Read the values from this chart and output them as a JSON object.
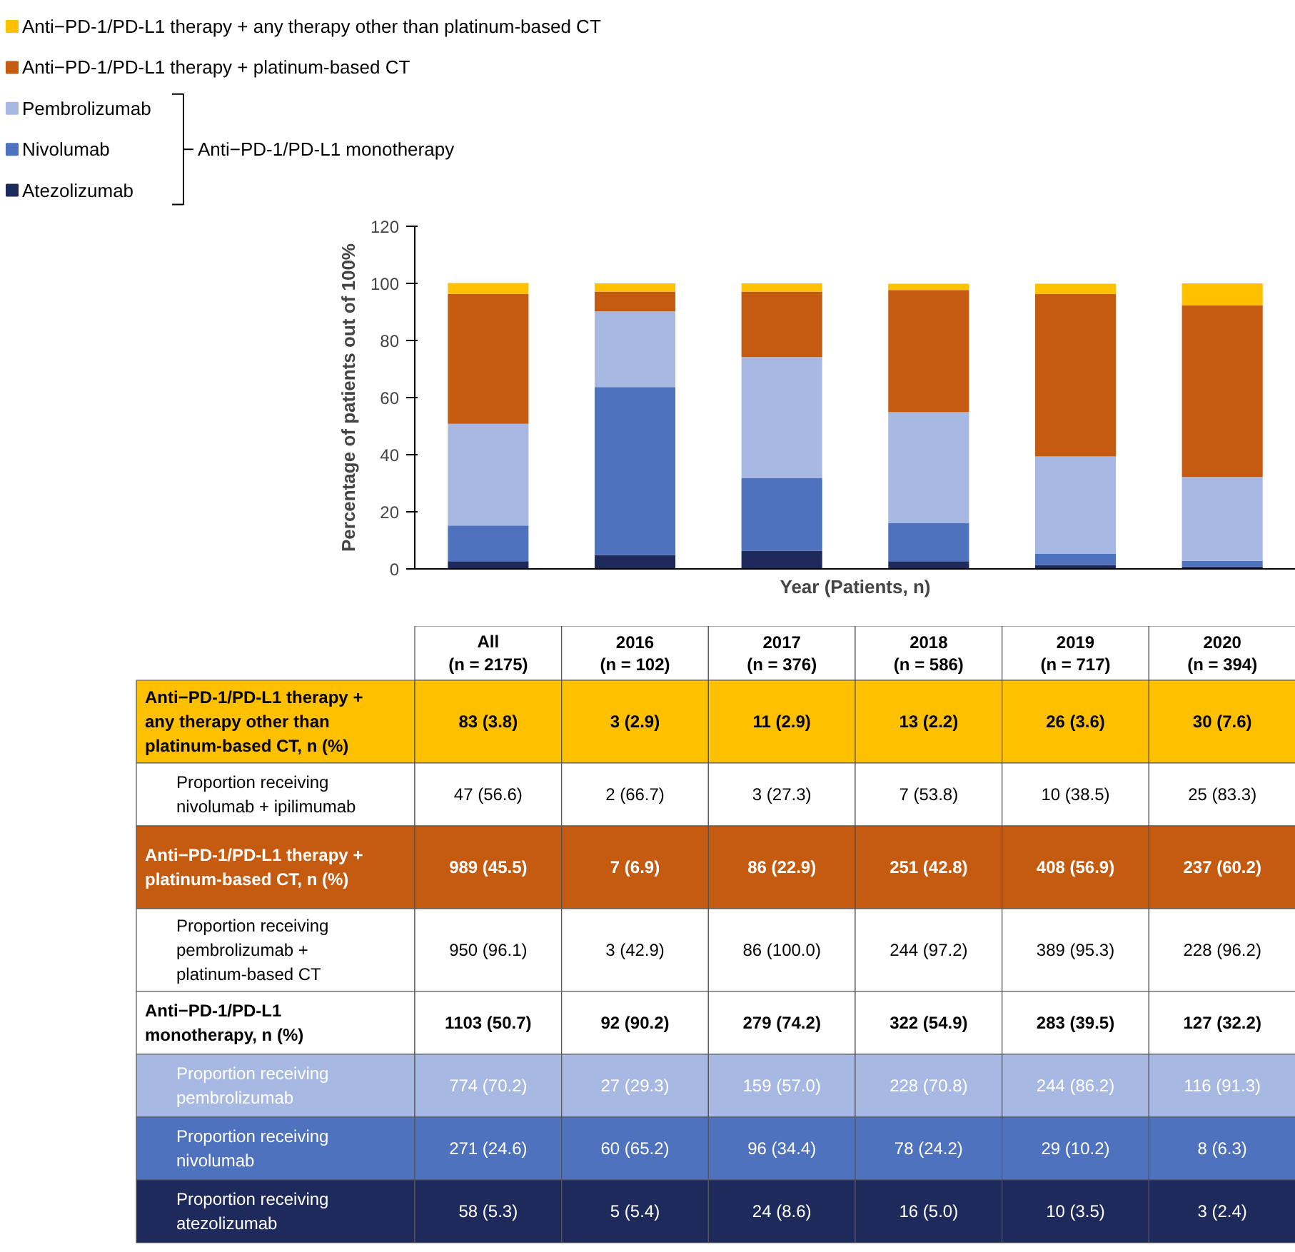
{
  "chart_data": {
    "type": "bar",
    "stacked": true,
    "xlabel": "Year (Patients, n)",
    "ylabel": "Percentage of patients out of 100%",
    "categories": [
      "All",
      "2016",
      "2017",
      "2018",
      "2019",
      "2020"
    ],
    "ylim": [
      0,
      120
    ],
    "yticks": [
      0,
      20,
      40,
      60,
      80,
      100,
      120
    ],
    "grid": false,
    "legend": "top left",
    "series": [
      {
        "name": "Atezolizumab",
        "color": "#1f2a5c",
        "values": [
          2.7,
          4.9,
          6.4,
          2.7,
          1.4,
          0.8
        ]
      },
      {
        "name": "Nivolumab",
        "color": "#4f72be",
        "values": [
          12.5,
          58.8,
          25.5,
          13.3,
          4.0,
          2.0
        ]
      },
      {
        "name": "Pembrolizumab",
        "color": "#a7b9e3",
        "values": [
          35.6,
          26.5,
          42.3,
          38.9,
          34.0,
          29.4
        ]
      },
      {
        "name": "Anti−PD-1/PD-L1 therapy + platinum-based CT",
        "color": "#c55a11",
        "values": [
          45.5,
          6.9,
          22.9,
          42.8,
          56.9,
          60.2
        ]
      },
      {
        "name": "Anti−PD-1/PD-L1 therapy + any therapy other than platinum-based CT",
        "color": "#ffc000",
        "values": [
          3.8,
          2.9,
          2.9,
          2.2,
          3.6,
          7.6
        ]
      }
    ],
    "annotations": [
      "Anti−PD-1/PD-L1 monotherapy",
      "(n = 2175)",
      "(n = 102)",
      "(n = 376)",
      "(n = 586)",
      "(n = 717)",
      "(n = 394)",
      "Anti−PD-1/PD-L1 therapy +\nany therapy other than\nplatinum-based CT, n (%)",
      "83 (3.8)",
      "3 (2.9)",
      "11 (2.9)",
      "13 (2.2)",
      "26 (3.6)",
      "30 (7.6)",
      "Proportion receiving\nnivolumab + ipilimumab",
      "47 (56.6)",
      "2 (66.7)",
      "3 (27.3)",
      "7 (53.8)",
      "10 (38.5)",
      "25 (83.3)",
      "Anti−PD-1/PD-L1 therapy +\nplatinum-based CT, n (%)",
      "989 (45.5)",
      "7 (6.9)",
      "86 (22.9)",
      "251 (42.8)",
      "408 (56.9)",
      "237 (60.2)",
      "Proportion receiving\npembrolizumab +\nplatinum-based CT",
      "950 (96.1)",
      "3 (42.9)",
      "86 (100.0)",
      "244 (97.2)",
      "389 (95.3)",
      "228 (96.2)",
      "Anti−PD-1/PD-L1\nmonotherapy, n (%)",
      "1103 (50.7)",
      "92 (90.2)",
      "279 (74.2)",
      "322 (54.9)",
      "283 (39.5)",
      "127 (32.2)",
      "Proportion receiving\npembrolizumab",
      "774 (70.2)",
      "27 (29.3)",
      "159 (57.0)",
      "228 (70.8)",
      "244 (86.2)",
      "116 (91.3)",
      "Proportion receiving\nnivolumab",
      "271 (24.6)",
      "60 (65.2)",
      "96 (34.4)",
      "78 (24.2)",
      "29 (10.2)",
      "8 (6.3)",
      "Proportion receiving\natezolizumab",
      "58 (5.3)",
      "5 (5.4)",
      "24 (8.6)",
      "16 (5.0)",
      "10 (3.5)",
      "3 (2.4)"
    ]
  }
}
